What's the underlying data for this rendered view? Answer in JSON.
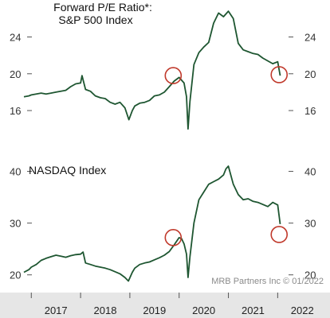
{
  "credit": "MRB Partners Inc © 01/2022",
  "colors": {
    "line": "#1e5631",
    "highlight": "#c0392b",
    "axis": "#555555",
    "band": "#e6e6e6"
  },
  "chart_data": [
    {
      "type": "line",
      "title_lines": [
        "Forward P/E Ratio*:",
        "S&P 500 Index"
      ],
      "ylim": [
        13.5,
        27.5
      ],
      "yticks": [
        16,
        20,
        24
      ],
      "x_range": [
        2016.85,
        2022.35
      ],
      "series": [
        {
          "x": [
            2016.85,
            2016.95,
            2017.0,
            2017.1,
            2017.2,
            2017.3,
            2017.4,
            2017.5,
            2017.6,
            2017.7,
            2017.8,
            2017.9,
            2018.0,
            2018.03,
            2018.1,
            2018.2,
            2018.3,
            2018.4,
            2018.5,
            2018.6,
            2018.7,
            2018.8,
            2018.9,
            2018.98,
            2019.05,
            2019.1,
            2019.2,
            2019.3,
            2019.4,
            2019.5,
            2019.6,
            2019.7,
            2019.8,
            2019.9,
            2020.0,
            2020.05,
            2020.1,
            2020.15,
            2020.18,
            2020.22,
            2020.3,
            2020.4,
            2020.5,
            2020.6,
            2020.7,
            2020.8,
            2020.9,
            2021.0,
            2021.1,
            2021.2,
            2021.3,
            2021.4,
            2021.5,
            2021.6,
            2021.7,
            2021.8,
            2021.9,
            2022.0,
            2022.05
          ],
          "y": [
            17.5,
            17.6,
            17.7,
            17.8,
            17.9,
            17.8,
            17.9,
            18.0,
            18.1,
            18.2,
            18.6,
            18.9,
            19.0,
            19.8,
            18.3,
            18.1,
            17.6,
            17.4,
            17.3,
            16.9,
            16.7,
            16.9,
            16.3,
            15.0,
            16.0,
            16.5,
            16.8,
            16.9,
            17.1,
            17.6,
            17.7,
            18.0,
            18.6,
            19.2,
            19.6,
            19.3,
            19.0,
            17.5,
            14.0,
            17.0,
            21.0,
            22.3,
            22.9,
            23.4,
            25.5,
            26.6,
            26.2,
            26.8,
            26.0,
            23.3,
            22.6,
            22.4,
            22.2,
            22.1,
            21.7,
            21.4,
            21.1,
            21.3,
            19.8
          ]
        }
      ],
      "annotations": [
        {
          "x": 2019.88,
          "y": 19.8
        },
        {
          "x": 2022.03,
          "y": 19.9
        }
      ]
    },
    {
      "type": "line",
      "title": "NASDAQ Index",
      "ylim": [
        17.5,
        43.0
      ],
      "yticks": [
        20,
        30,
        40
      ],
      "x_range": [
        2016.85,
        2022.35
      ],
      "series": [
        {
          "x": [
            2016.85,
            2016.95,
            2017.0,
            2017.1,
            2017.2,
            2017.3,
            2017.4,
            2017.5,
            2017.6,
            2017.7,
            2017.8,
            2017.9,
            2018.0,
            2018.05,
            2018.1,
            2018.2,
            2018.3,
            2018.4,
            2018.5,
            2018.6,
            2018.7,
            2018.8,
            2018.9,
            2018.97,
            2019.05,
            2019.1,
            2019.2,
            2019.3,
            2019.4,
            2019.5,
            2019.6,
            2019.7,
            2019.8,
            2019.9,
            2020.0,
            2020.05,
            2020.1,
            2020.15,
            2020.18,
            2020.22,
            2020.3,
            2020.4,
            2020.5,
            2020.6,
            2020.7,
            2020.8,
            2020.9,
            2020.95,
            2021.0,
            2021.1,
            2021.2,
            2021.3,
            2021.4,
            2021.5,
            2021.6,
            2021.7,
            2021.8,
            2021.9,
            2022.0,
            2022.05
          ],
          "y": [
            20.5,
            21.0,
            21.5,
            22.0,
            22.8,
            23.2,
            23.5,
            23.8,
            23.6,
            23.4,
            23.7,
            23.9,
            24.0,
            24.4,
            22.3,
            22.0,
            21.7,
            21.5,
            21.3,
            21.0,
            20.6,
            20.2,
            19.5,
            18.8,
            20.5,
            21.3,
            22.0,
            22.3,
            22.5,
            22.9,
            23.3,
            23.8,
            24.5,
            25.8,
            27.2,
            27.0,
            26.0,
            24.0,
            19.5,
            23.5,
            30.0,
            34.5,
            36.0,
            37.5,
            38.0,
            38.5,
            39.3,
            40.5,
            41.0,
            37.5,
            35.5,
            34.5,
            34.7,
            34.2,
            34.0,
            33.6,
            33.2,
            34.0,
            33.5,
            29.8
          ]
        }
      ],
      "annotations": [
        {
          "x": 2019.88,
          "y": 27.2
        },
        {
          "x": 2022.03,
          "y": 27.8
        }
      ]
    }
  ],
  "x_axis": {
    "years": [
      "2017",
      "2018",
      "2019",
      "2020",
      "2021",
      "2022"
    ]
  }
}
